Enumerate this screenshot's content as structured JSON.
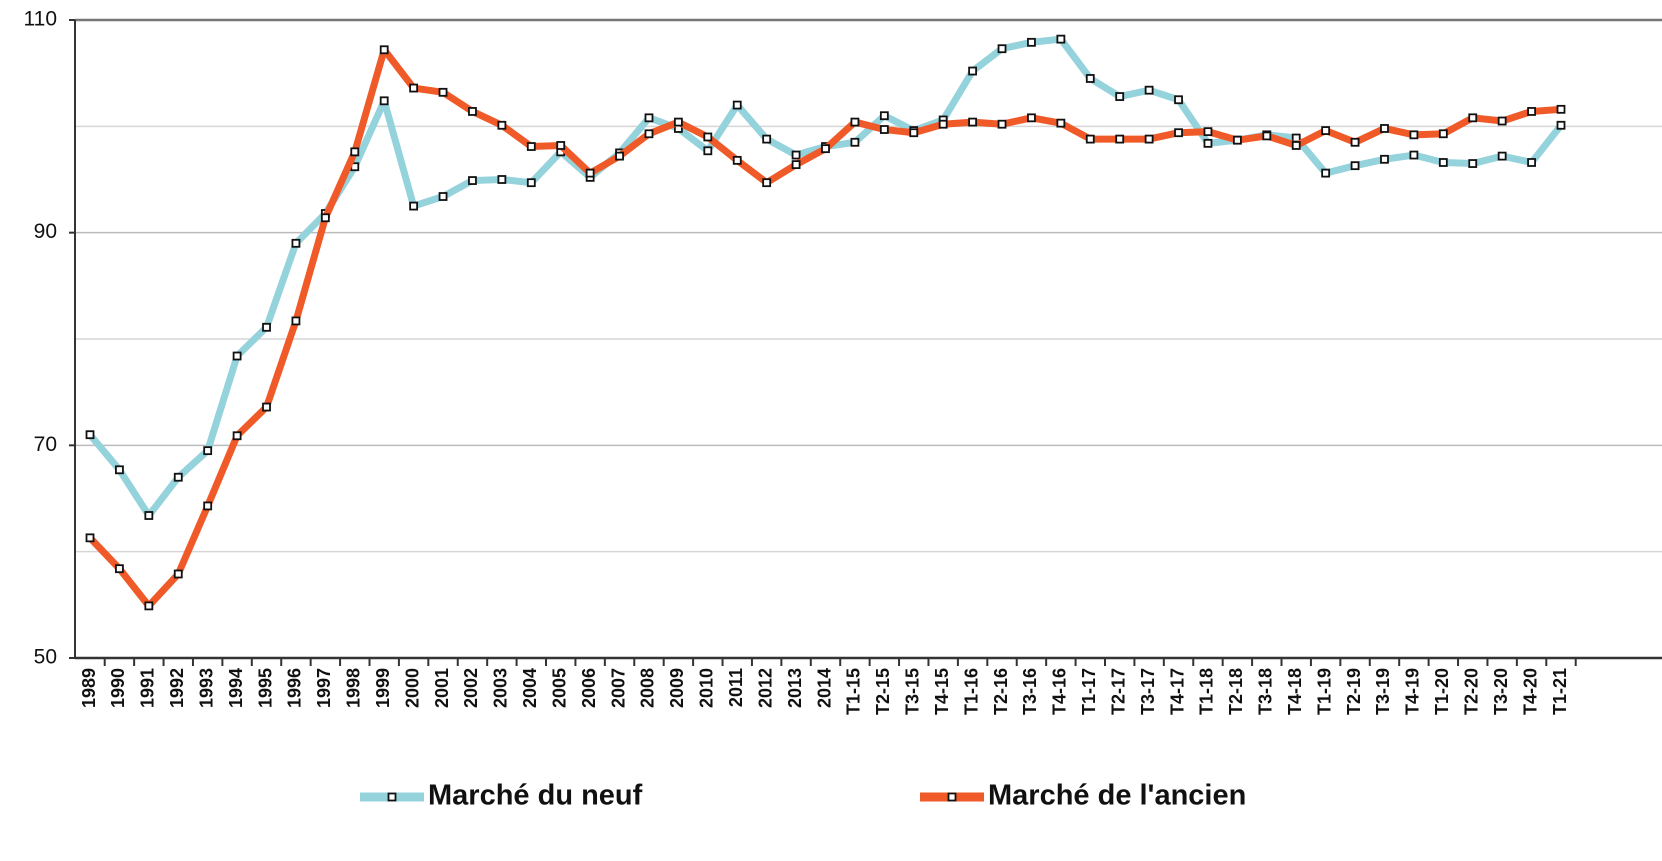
{
  "chart_data": {
    "type": "line",
    "categories": [
      "1989",
      "1990",
      "1991",
      "1992",
      "1993",
      "1994",
      "1995",
      "1996",
      "1997",
      "1998",
      "1999",
      "2000",
      "2001",
      "2002",
      "2003",
      "2004",
      "2005",
      "2006",
      "2007",
      "2008",
      "2009",
      "2010",
      "2011",
      "2012",
      "2013",
      "2014",
      "T1-15",
      "T2-15",
      "T3-15",
      "T4-15",
      "T1-16",
      "T2-16",
      "T3-16",
      "T4-16",
      "T1-17",
      "T2-17",
      "T3-17",
      "T4-17",
      "T1-18",
      "T2-18",
      "T3-18",
      "T4-18",
      "T1-19",
      "T2-19",
      "T3-19",
      "T4-19",
      "T1-20",
      "T2-20",
      "T3-20",
      "T4-20",
      "T1-21"
    ],
    "series": [
      {
        "name": "Marché du neuf",
        "color": "#94d2dc",
        "values": [
          71.0,
          67.7,
          63.4,
          67.0,
          69.5,
          78.4,
          81.1,
          89.0,
          91.8,
          96.2,
          102.4,
          92.5,
          93.4,
          94.9,
          95.0,
          94.7,
          97.6,
          95.2,
          97.5,
          100.8,
          99.8,
          97.7,
          102.0,
          98.8,
          97.3,
          98.1,
          98.5,
          101.0,
          99.6,
          100.6,
          105.2,
          107.3,
          107.9,
          108.2,
          104.5,
          102.8,
          103.4,
          102.5,
          98.4,
          98.7,
          99.2,
          98.9,
          95.6,
          96.3,
          96.9,
          97.3,
          96.6,
          96.5,
          97.2,
          96.6,
          100.1
        ]
      },
      {
        "name": "Marché de l'ancien",
        "color": "#f05a28",
        "values": [
          61.3,
          58.4,
          54.9,
          57.9,
          64.3,
          70.9,
          73.6,
          81.7,
          91.4,
          97.6,
          107.2,
          103.6,
          103.2,
          101.4,
          100.1,
          98.1,
          98.2,
          95.6,
          97.2,
          99.3,
          100.4,
          99.0,
          96.8,
          94.7,
          96.4,
          97.9,
          100.4,
          99.7,
          99.4,
          100.2,
          100.4,
          100.2,
          100.8,
          100.3,
          98.8,
          98.8,
          98.8,
          99.4,
          99.5,
          98.7,
          99.1,
          98.2,
          99.6,
          98.5,
          99.8,
          99.2,
          99.3,
          100.8,
          100.5,
          101.4,
          101.6
        ]
      }
    ],
    "ylim": [
      50,
      110
    ],
    "yticks": [
      50,
      70,
      90,
      110
    ],
    "minor_yticks": [
      60,
      80,
      100
    ],
    "grid": true
  }
}
